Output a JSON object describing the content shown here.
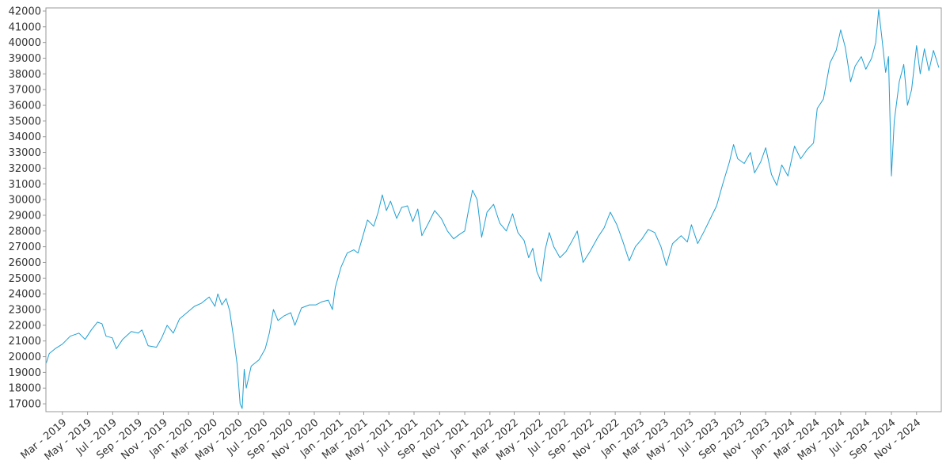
{
  "chart_data": {
    "type": "line",
    "title": "",
    "xlabel": "",
    "ylabel": "",
    "x_range": [
      "2019-01-20",
      "2024-12-31"
    ],
    "ylim": [
      16500,
      42200
    ],
    "grid": false,
    "legend": "none",
    "line_color": "#1f9fd2",
    "y_ticks": [
      17000,
      18000,
      19000,
      20000,
      21000,
      22000,
      23000,
      24000,
      25000,
      26000,
      27000,
      28000,
      29000,
      30000,
      31000,
      32000,
      33000,
      34000,
      35000,
      36000,
      37000,
      38000,
      39000,
      40000,
      41000,
      42000
    ],
    "x_ticks": [
      {
        "date": "2019-03-01",
        "label": "Mar - 2019"
      },
      {
        "date": "2019-05-01",
        "label": "May - 2019"
      },
      {
        "date": "2019-07-01",
        "label": "Jul - 2019"
      },
      {
        "date": "2019-09-01",
        "label": "Sep - 2019"
      },
      {
        "date": "2019-11-01",
        "label": "Nov - 2019"
      },
      {
        "date": "2020-01-01",
        "label": "Jan - 2020"
      },
      {
        "date": "2020-03-01",
        "label": "Mar - 2020"
      },
      {
        "date": "2020-05-01",
        "label": "May - 2020"
      },
      {
        "date": "2020-07-01",
        "label": "Jul - 2020"
      },
      {
        "date": "2020-09-01",
        "label": "Sep - 2020"
      },
      {
        "date": "2020-11-01",
        "label": "Nov - 2020"
      },
      {
        "date": "2021-01-01",
        "label": "Jan - 2021"
      },
      {
        "date": "2021-03-01",
        "label": "Mar - 2021"
      },
      {
        "date": "2021-05-01",
        "label": "May - 2021"
      },
      {
        "date": "2021-07-01",
        "label": "Jul - 2021"
      },
      {
        "date": "2021-09-01",
        "label": "Sep - 2021"
      },
      {
        "date": "2021-11-01",
        "label": "Nov - 2021"
      },
      {
        "date": "2022-01-01",
        "label": "Jan - 2022"
      },
      {
        "date": "2022-03-01",
        "label": "Mar - 2022"
      },
      {
        "date": "2022-05-01",
        "label": "May - 2022"
      },
      {
        "date": "2022-07-01",
        "label": "Jul - 2022"
      },
      {
        "date": "2022-09-01",
        "label": "Sep - 2022"
      },
      {
        "date": "2022-11-01",
        "label": "Nov - 2022"
      },
      {
        "date": "2023-01-01",
        "label": "Jan - 2023"
      },
      {
        "date": "2023-03-01",
        "label": "Mar - 2023"
      },
      {
        "date": "2023-05-01",
        "label": "May - 2023"
      },
      {
        "date": "2023-07-01",
        "label": "Jul - 2023"
      },
      {
        "date": "2023-09-01",
        "label": "Sep - 2023"
      },
      {
        "date": "2023-11-01",
        "label": "Nov - 2023"
      },
      {
        "date": "2024-01-01",
        "label": "Jan - 2024"
      },
      {
        "date": "2024-03-01",
        "label": "Mar - 2024"
      },
      {
        "date": "2024-05-01",
        "label": "May - 2024"
      },
      {
        "date": "2024-07-01",
        "label": "Jul - 2024"
      },
      {
        "date": "2024-09-01",
        "label": "Sep - 2024"
      },
      {
        "date": "2024-11-01",
        "label": "Nov - 2024"
      }
    ],
    "series": [
      {
        "points": [
          {
            "x": "2019-01-21",
            "y": 19600
          },
          {
            "x": "2019-01-28",
            "y": 20200
          },
          {
            "x": "2019-02-11",
            "y": 20500
          },
          {
            "x": "2019-03-01",
            "y": 20800
          },
          {
            "x": "2019-03-20",
            "y": 21300
          },
          {
            "x": "2019-04-10",
            "y": 21500
          },
          {
            "x": "2019-04-25",
            "y": 21100
          },
          {
            "x": "2019-05-10",
            "y": 21700
          },
          {
            "x": "2019-05-25",
            "y": 22200
          },
          {
            "x": "2019-06-05",
            "y": 22100
          },
          {
            "x": "2019-06-15",
            "y": 21300
          },
          {
            "x": "2019-06-30",
            "y": 21200
          },
          {
            "x": "2019-07-10",
            "y": 20500
          },
          {
            "x": "2019-07-25",
            "y": 21100
          },
          {
            "x": "2019-08-15",
            "y": 21600
          },
          {
            "x": "2019-09-01",
            "y": 21500
          },
          {
            "x": "2019-09-10",
            "y": 21700
          },
          {
            "x": "2019-09-25",
            "y": 20700
          },
          {
            "x": "2019-10-15",
            "y": 20600
          },
          {
            "x": "2019-10-28",
            "y": 21200
          },
          {
            "x": "2019-11-10",
            "y": 22000
          },
          {
            "x": "2019-11-25",
            "y": 21500
          },
          {
            "x": "2019-12-10",
            "y": 22400
          },
          {
            "x": "2019-12-28",
            "y": 22800
          },
          {
            "x": "2020-01-15",
            "y": 23200
          },
          {
            "x": "2020-02-01",
            "y": 23400
          },
          {
            "x": "2020-02-20",
            "y": 23800
          },
          {
            "x": "2020-03-05",
            "y": 23200
          },
          {
            "x": "2020-03-12",
            "y": 24000
          },
          {
            "x": "2020-03-22",
            "y": 23300
          },
          {
            "x": "2020-04-01",
            "y": 23700
          },
          {
            "x": "2020-04-10",
            "y": 22900
          },
          {
            "x": "2020-04-20",
            "y": 21100
          },
          {
            "x": "2020-04-28",
            "y": 19500
          },
          {
            "x": "2020-05-05",
            "y": 17000
          },
          {
            "x": "2020-05-10",
            "y": 16700
          },
          {
            "x": "2020-05-15",
            "y": 19200
          },
          {
            "x": "2020-05-20",
            "y": 18000
          },
          {
            "x": "2020-06-01",
            "y": 19400
          },
          {
            "x": "2020-06-20",
            "y": 19800
          },
          {
            "x": "2020-07-05",
            "y": 20500
          },
          {
            "x": "2020-07-15",
            "y": 21500
          },
          {
            "x": "2020-07-25",
            "y": 23000
          },
          {
            "x": "2020-08-05",
            "y": 22300
          },
          {
            "x": "2020-08-20",
            "y": 22600
          },
          {
            "x": "2020-09-05",
            "y": 22800
          },
          {
            "x": "2020-09-15",
            "y": 22000
          },
          {
            "x": "2020-10-01",
            "y": 23100
          },
          {
            "x": "2020-10-20",
            "y": 23300
          },
          {
            "x": "2020-11-05",
            "y": 23300
          },
          {
            "x": "2020-11-20",
            "y": 23500
          },
          {
            "x": "2020-12-05",
            "y": 23600
          },
          {
            "x": "2020-12-15",
            "y": 23000
          },
          {
            "x": "2020-12-22",
            "y": 24400
          },
          {
            "x": "2021-01-05",
            "y": 25700
          },
          {
            "x": "2021-01-20",
            "y": 26600
          },
          {
            "x": "2021-02-05",
            "y": 26800
          },
          {
            "x": "2021-02-15",
            "y": 26600
          },
          {
            "x": "2021-02-25",
            "y": 27500
          },
          {
            "x": "2021-03-10",
            "y": 28700
          },
          {
            "x": "2021-03-25",
            "y": 28300
          },
          {
            "x": "2021-04-05",
            "y": 29200
          },
          {
            "x": "2021-04-15",
            "y": 30300
          },
          {
            "x": "2021-04-25",
            "y": 29300
          },
          {
            "x": "2021-05-05",
            "y": 29900
          },
          {
            "x": "2021-05-20",
            "y": 28800
          },
          {
            "x": "2021-06-01",
            "y": 29500
          },
          {
            "x": "2021-06-15",
            "y": 29600
          },
          {
            "x": "2021-06-28",
            "y": 28600
          },
          {
            "x": "2021-07-10",
            "y": 29400
          },
          {
            "x": "2021-07-20",
            "y": 27700
          },
          {
            "x": "2021-08-05",
            "y": 28500
          },
          {
            "x": "2021-08-20",
            "y": 29300
          },
          {
            "x": "2021-09-05",
            "y": 28800
          },
          {
            "x": "2021-09-20",
            "y": 28000
          },
          {
            "x": "2021-10-05",
            "y": 27500
          },
          {
            "x": "2021-10-20",
            "y": 27800
          },
          {
            "x": "2021-11-01",
            "y": 28000
          },
          {
            "x": "2021-11-10",
            "y": 29300
          },
          {
            "x": "2021-11-20",
            "y": 30600
          },
          {
            "x": "2021-12-01",
            "y": 30000
          },
          {
            "x": "2021-12-12",
            "y": 27600
          },
          {
            "x": "2021-12-25",
            "y": 29200
          },
          {
            "x": "2022-01-10",
            "y": 29700
          },
          {
            "x": "2022-01-25",
            "y": 28500
          },
          {
            "x": "2022-02-10",
            "y": 28000
          },
          {
            "x": "2022-02-25",
            "y": 29100
          },
          {
            "x": "2022-03-10",
            "y": 27900
          },
          {
            "x": "2022-03-25",
            "y": 27400
          },
          {
            "x": "2022-04-05",
            "y": 26300
          },
          {
            "x": "2022-04-15",
            "y": 26900
          },
          {
            "x": "2022-04-25",
            "y": 25400
          },
          {
            "x": "2022-05-05",
            "y": 24800
          },
          {
            "x": "2022-05-15",
            "y": 26800
          },
          {
            "x": "2022-05-25",
            "y": 27900
          },
          {
            "x": "2022-06-05",
            "y": 27000
          },
          {
            "x": "2022-06-20",
            "y": 26300
          },
          {
            "x": "2022-07-05",
            "y": 26700
          },
          {
            "x": "2022-07-20",
            "y": 27400
          },
          {
            "x": "2022-08-01",
            "y": 28000
          },
          {
            "x": "2022-08-15",
            "y": 26000
          },
          {
            "x": "2022-09-01",
            "y": 26700
          },
          {
            "x": "2022-09-20",
            "y": 27600
          },
          {
            "x": "2022-10-05",
            "y": 28200
          },
          {
            "x": "2022-10-20",
            "y": 29200
          },
          {
            "x": "2022-11-05",
            "y": 28400
          },
          {
            "x": "2022-11-20",
            "y": 27300
          },
          {
            "x": "2022-12-05",
            "y": 26100
          },
          {
            "x": "2022-12-20",
            "y": 27000
          },
          {
            "x": "2023-01-05",
            "y": 27500
          },
          {
            "x": "2023-01-20",
            "y": 28100
          },
          {
            "x": "2023-02-05",
            "y": 27900
          },
          {
            "x": "2023-02-20",
            "y": 27000
          },
          {
            "x": "2023-03-05",
            "y": 25800
          },
          {
            "x": "2023-03-20",
            "y": 27200
          },
          {
            "x": "2023-04-10",
            "y": 27700
          },
          {
            "x": "2023-04-25",
            "y": 27300
          },
          {
            "x": "2023-05-05",
            "y": 28400
          },
          {
            "x": "2023-05-20",
            "y": 27200
          },
          {
            "x": "2023-06-05",
            "y": 28000
          },
          {
            "x": "2023-06-20",
            "y": 28800
          },
          {
            "x": "2023-07-05",
            "y": 29600
          },
          {
            "x": "2023-07-20",
            "y": 31000
          },
          {
            "x": "2023-08-05",
            "y": 32400
          },
          {
            "x": "2023-08-15",
            "y": 33500
          },
          {
            "x": "2023-08-25",
            "y": 32600
          },
          {
            "x": "2023-09-10",
            "y": 32300
          },
          {
            "x": "2023-09-25",
            "y": 33000
          },
          {
            "x": "2023-10-05",
            "y": 31700
          },
          {
            "x": "2023-10-20",
            "y": 32400
          },
          {
            "x": "2023-11-01",
            "y": 33300
          },
          {
            "x": "2023-11-15",
            "y": 31600
          },
          {
            "x": "2023-11-28",
            "y": 30900
          },
          {
            "x": "2023-12-10",
            "y": 32200
          },
          {
            "x": "2023-12-25",
            "y": 31500
          },
          {
            "x": "2024-01-10",
            "y": 33400
          },
          {
            "x": "2024-01-25",
            "y": 32600
          },
          {
            "x": "2024-02-10",
            "y": 33200
          },
          {
            "x": "2024-02-25",
            "y": 33600
          },
          {
            "x": "2024-03-05",
            "y": 35800
          },
          {
            "x": "2024-03-20",
            "y": 36400
          },
          {
            "x": "2024-04-05",
            "y": 38700
          },
          {
            "x": "2024-04-20",
            "y": 39500
          },
          {
            "x": "2024-05-01",
            "y": 40800
          },
          {
            "x": "2024-05-12",
            "y": 39700
          },
          {
            "x": "2024-05-25",
            "y": 37500
          },
          {
            "x": "2024-06-05",
            "y": 38500
          },
          {
            "x": "2024-06-20",
            "y": 39100
          },
          {
            "x": "2024-07-01",
            "y": 38300
          },
          {
            "x": "2024-07-15",
            "y": 39000
          },
          {
            "x": "2024-07-25",
            "y": 40000
          },
          {
            "x": "2024-08-01",
            "y": 42100
          },
          {
            "x": "2024-08-08",
            "y": 40500
          },
          {
            "x": "2024-08-18",
            "y": 38100
          },
          {
            "x": "2024-08-25",
            "y": 39100
          },
          {
            "x": "2024-09-01",
            "y": 31500
          },
          {
            "x": "2024-09-08",
            "y": 35000
          },
          {
            "x": "2024-09-20",
            "y": 37500
          },
          {
            "x": "2024-10-01",
            "y": 38600
          },
          {
            "x": "2024-10-10",
            "y": 36000
          },
          {
            "x": "2024-10-20",
            "y": 37000
          },
          {
            "x": "2024-11-01",
            "y": 39800
          },
          {
            "x": "2024-11-10",
            "y": 38000
          },
          {
            "x": "2024-11-20",
            "y": 39600
          },
          {
            "x": "2024-12-01",
            "y": 38200
          },
          {
            "x": "2024-12-12",
            "y": 39500
          },
          {
            "x": "2024-12-25",
            "y": 38400
          }
        ]
      }
    ]
  }
}
